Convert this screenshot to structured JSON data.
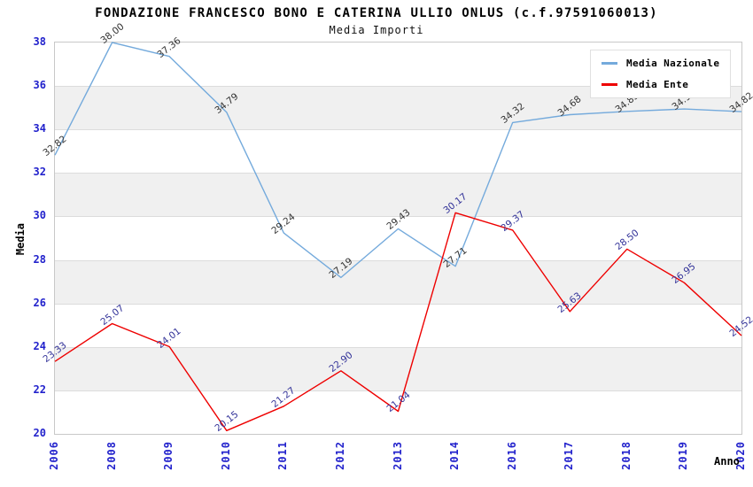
{
  "chart_data": {
    "type": "line",
    "title": "FONDAZIONE FRANCESCO BONO E CATERINA ULLIO ONLUS (c.f.97591060013)",
    "subtitle": "Media Importi",
    "xlabel": "Anno",
    "ylabel": "Media",
    "categories": [
      "2006",
      "2008",
      "2009",
      "2010",
      "2011",
      "2012",
      "2013",
      "2014",
      "2016",
      "2017",
      "2018",
      "2019",
      "2020"
    ],
    "series": [
      {
        "name": "Media Nazionale",
        "color": "#74aadc",
        "label_color": "#333333",
        "values": [
          32.82,
          38.0,
          37.36,
          34.79,
          29.24,
          27.19,
          29.43,
          27.71,
          34.32,
          34.68,
          34.83,
          34.94,
          34.82
        ]
      },
      {
        "name": "Media Ente",
        "color": "#ee0000",
        "label_color": "#333399",
        "values": [
          23.33,
          25.07,
          24.01,
          20.15,
          21.27,
          22.9,
          21.04,
          30.17,
          29.37,
          25.63,
          28.5,
          26.95,
          24.52
        ]
      }
    ],
    "ylim": [
      20,
      38
    ],
    "yticks": [
      20,
      22,
      24,
      26,
      28,
      30,
      32,
      34,
      36,
      38
    ],
    "grid": true,
    "band_color": "#f0f0f0",
    "grid_color": "#dcdcdc",
    "plot_border_color": "#c8c8c8",
    "tick_label_color": "#2222cc",
    "legend_position": "top-right"
  }
}
